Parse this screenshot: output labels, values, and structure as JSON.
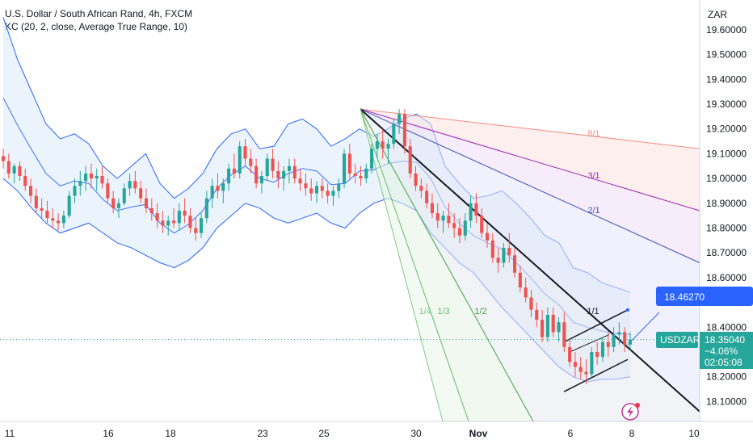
{
  "header": {
    "title": "U.S. Dollar / South African Rand, 4h, FXCM",
    "indicator": "KC (20, 2, close, Average True Range, 10)"
  },
  "colors": {
    "up": "#26a69a",
    "down": "#ef5350",
    "band": "#2962ff",
    "band_fill": "#e3effb",
    "price_tag": "#26a69a",
    "target_tag": "#2962ff"
  },
  "chart_data": {
    "type": "candlestick",
    "currency": "ZAR",
    "ylim": [
      18.02,
      19.72
    ],
    "y_ticks": [
      "19.60000",
      "19.50000",
      "19.40000",
      "19.30000",
      "19.20000",
      "19.10000",
      "19.00000",
      "18.90000",
      "18.80000",
      "18.70000",
      "18.60000",
      "18.50000",
      "18.40000",
      "18.30000",
      "18.20000",
      "18.10000"
    ],
    "x_ticks": [
      "11",
      "16",
      "18",
      "23",
      "25",
      "30",
      "Nov",
      "6",
      "8",
      "10"
    ],
    "series": [
      {
        "name": "USDZAR",
        "price": "18.35040",
        "change": "−4.06%",
        "countdown": "02:05:08"
      }
    ],
    "target_price": "18.46270",
    "fan_labels": [
      "8/1",
      "3/1",
      "2/1",
      "1/1",
      "1/2",
      "1/3",
      "1/4"
    ],
    "keltner_upper": [
      19.65,
      19.48,
      19.35,
      19.22,
      19.16,
      19.18,
      19.14,
      19.05,
      19.0,
      19.05,
      19.1,
      18.98,
      18.92,
      18.96,
      19.02,
      19.12,
      19.18,
      19.2,
      19.12,
      19.13,
      19.22,
      19.24,
      19.2,
      19.13,
      19.16,
      19.2,
      19.17,
      19.2,
      19.24,
      19.26,
      19.22,
      19.05,
      18.98,
      18.92,
      18.93,
      18.95,
      18.9,
      18.84,
      18.77,
      18.74,
      18.64,
      18.62,
      18.58,
      18.56,
      18.54
    ],
    "keltner_lower": [
      19.0,
      18.95,
      18.88,
      18.82,
      18.78,
      18.8,
      18.82,
      18.78,
      18.74,
      18.72,
      18.69,
      18.66,
      18.64,
      18.67,
      18.72,
      18.8,
      18.85,
      18.9,
      18.88,
      18.84,
      18.82,
      18.84,
      18.86,
      18.82,
      18.8,
      18.86,
      18.9,
      18.92,
      18.9,
      18.87,
      18.78,
      18.72,
      18.66,
      18.62,
      18.55,
      18.48,
      18.42,
      18.36,
      18.3,
      18.24,
      18.2,
      18.18,
      18.19,
      18.19,
      18.2
    ],
    "candles": [
      [
        19.09,
        19.12,
        19.04,
        19.07
      ],
      [
        19.07,
        19.1,
        19.0,
        19.02
      ],
      [
        19.02,
        19.06,
        18.98,
        19.05
      ],
      [
        19.05,
        19.07,
        18.99,
        19.01
      ],
      [
        19.01,
        19.04,
        18.95,
        18.97
      ],
      [
        18.97,
        19.0,
        18.9,
        18.93
      ],
      [
        18.93,
        18.96,
        18.86,
        18.88
      ],
      [
        18.88,
        18.92,
        18.84,
        18.87
      ],
      [
        18.87,
        18.91,
        18.82,
        18.84
      ],
      [
        18.84,
        18.88,
        18.8,
        18.83
      ],
      [
        18.83,
        18.86,
        18.79,
        18.82
      ],
      [
        18.82,
        18.87,
        18.8,
        18.85
      ],
      [
        18.85,
        18.95,
        18.84,
        18.93
      ],
      [
        18.93,
        19.0,
        18.9,
        18.97
      ],
      [
        18.97,
        19.03,
        18.93,
        18.99
      ],
      [
        18.99,
        19.05,
        18.95,
        19.02
      ],
      [
        19.02,
        19.06,
        18.96,
        19.0
      ],
      [
        19.0,
        19.04,
        18.95,
        19.01
      ],
      [
        19.01,
        19.05,
        18.96,
        18.98
      ],
      [
        18.98,
        19.0,
        18.9,
        18.92
      ],
      [
        18.92,
        18.95,
        18.86,
        18.88
      ],
      [
        18.88,
        18.92,
        18.84,
        18.9
      ],
      [
        18.9,
        18.98,
        18.89,
        18.96
      ],
      [
        18.96,
        19.02,
        18.93,
        18.99
      ],
      [
        18.99,
        19.03,
        18.94,
        18.96
      ],
      [
        18.96,
        18.99,
        18.9,
        18.92
      ],
      [
        18.92,
        18.96,
        18.86,
        18.88
      ],
      [
        18.88,
        18.92,
        18.83,
        18.86
      ],
      [
        18.86,
        18.9,
        18.8,
        18.83
      ],
      [
        18.83,
        18.87,
        18.78,
        18.81
      ],
      [
        18.81,
        18.85,
        18.77,
        18.83
      ],
      [
        18.83,
        18.88,
        18.8,
        18.82
      ],
      [
        18.82,
        18.9,
        18.79,
        18.87
      ],
      [
        18.87,
        18.92,
        18.82,
        18.85
      ],
      [
        18.85,
        18.88,
        18.78,
        18.8
      ],
      [
        18.8,
        18.84,
        18.75,
        18.78
      ],
      [
        18.78,
        18.86,
        18.76,
        18.84
      ],
      [
        18.84,
        18.95,
        18.82,
        18.92
      ],
      [
        18.92,
        19.0,
        18.88,
        18.97
      ],
      [
        18.97,
        19.02,
        18.92,
        18.95
      ],
      [
        18.95,
        19.0,
        18.9,
        18.98
      ],
      [
        18.98,
        19.06,
        18.95,
        19.04
      ],
      [
        19.04,
        19.1,
        19.0,
        19.02
      ],
      [
        19.02,
        19.15,
        19.0,
        19.13
      ],
      [
        19.13,
        19.16,
        19.05,
        19.08
      ],
      [
        19.08,
        19.12,
        19.02,
        19.05
      ],
      [
        19.05,
        19.08,
        18.96,
        18.98
      ],
      [
        18.98,
        19.03,
        18.94,
        19.01
      ],
      [
        19.01,
        19.1,
        18.99,
        19.08
      ],
      [
        19.08,
        19.12,
        19.0,
        19.03
      ],
      [
        19.03,
        19.07,
        18.96,
        19.0
      ],
      [
        19.0,
        19.05,
        18.95,
        19.03
      ],
      [
        19.03,
        19.08,
        18.98,
        19.05
      ],
      [
        19.05,
        19.08,
        18.98,
        19.0
      ],
      [
        19.0,
        19.04,
        18.95,
        18.98
      ],
      [
        18.98,
        19.02,
        18.93,
        18.96
      ],
      [
        18.96,
        19.0,
        18.91,
        18.94
      ],
      [
        18.94,
        18.99,
        18.9,
        18.97
      ],
      [
        18.97,
        19.0,
        18.92,
        18.95
      ],
      [
        18.95,
        18.98,
        18.9,
        18.93
      ],
      [
        18.93,
        18.97,
        18.89,
        18.95
      ],
      [
        18.95,
        19.0,
        18.92,
        18.98
      ],
      [
        18.98,
        19.12,
        18.96,
        19.1
      ],
      [
        19.1,
        19.14,
        19.0,
        19.02
      ],
      [
        19.02,
        19.06,
        18.98,
        19.01
      ],
      [
        19.01,
        19.05,
        18.97,
        19.0
      ],
      [
        19.0,
        19.06,
        18.98,
        19.04
      ],
      [
        19.04,
        19.14,
        19.02,
        19.12
      ],
      [
        19.12,
        19.18,
        19.08,
        19.15
      ],
      [
        19.15,
        19.2,
        19.08,
        19.12
      ],
      [
        19.12,
        19.16,
        19.06,
        19.14
      ],
      [
        19.14,
        19.24,
        19.12,
        19.22
      ],
      [
        19.22,
        19.28,
        19.18,
        19.26
      ],
      [
        19.26,
        19.28,
        19.1,
        19.13
      ],
      [
        19.13,
        19.16,
        19.0,
        19.02
      ],
      [
        19.02,
        19.05,
        18.95,
        18.97
      ],
      [
        18.97,
        19.0,
        18.92,
        18.95
      ],
      [
        18.95,
        18.98,
        18.88,
        18.9
      ],
      [
        18.9,
        18.94,
        18.84,
        18.86
      ],
      [
        18.86,
        18.9,
        18.8,
        18.83
      ],
      [
        18.83,
        18.87,
        18.78,
        18.85
      ],
      [
        18.85,
        18.9,
        18.8,
        18.82
      ],
      [
        18.82,
        18.86,
        18.76,
        18.8
      ],
      [
        18.8,
        18.84,
        18.74,
        18.77
      ],
      [
        18.77,
        18.86,
        18.75,
        18.83
      ],
      [
        18.83,
        18.93,
        18.8,
        18.9
      ],
      [
        18.9,
        18.94,
        18.82,
        18.85
      ],
      [
        18.85,
        18.88,
        18.76,
        18.78
      ],
      [
        18.78,
        18.82,
        18.72,
        18.75
      ],
      [
        18.75,
        18.78,
        18.66,
        18.68
      ],
      [
        18.68,
        18.72,
        18.62,
        18.66
      ],
      [
        18.66,
        18.74,
        18.64,
        18.72
      ],
      [
        18.72,
        18.78,
        18.66,
        18.69
      ],
      [
        18.69,
        18.72,
        18.6,
        18.62
      ],
      [
        18.62,
        18.65,
        18.54,
        18.56
      ],
      [
        18.56,
        18.6,
        18.5,
        18.52
      ],
      [
        18.52,
        18.55,
        18.44,
        18.47
      ],
      [
        18.47,
        18.5,
        18.4,
        18.43
      ],
      [
        18.43,
        18.47,
        18.34,
        18.36
      ],
      [
        18.36,
        18.48,
        18.34,
        18.45
      ],
      [
        18.45,
        18.48,
        18.36,
        18.38
      ],
      [
        18.38,
        18.44,
        18.34,
        18.42
      ],
      [
        18.42,
        18.46,
        18.3,
        18.32
      ],
      [
        18.32,
        18.35,
        18.24,
        18.26
      ],
      [
        18.26,
        18.3,
        18.2,
        18.24
      ],
      [
        18.24,
        18.28,
        18.19,
        18.22
      ],
      [
        18.22,
        18.27,
        18.17,
        18.21
      ],
      [
        18.21,
        18.32,
        18.2,
        18.3
      ],
      [
        18.3,
        18.34,
        18.25,
        18.28
      ],
      [
        18.28,
        18.36,
        18.26,
        18.34
      ],
      [
        18.34,
        18.38,
        18.28,
        18.32
      ],
      [
        18.32,
        18.4,
        18.3,
        18.37
      ],
      [
        18.37,
        18.42,
        18.33,
        18.38
      ],
      [
        18.38,
        18.4,
        18.3,
        18.33
      ],
      [
        18.33,
        18.38,
        18.31,
        18.35
      ]
    ]
  }
}
